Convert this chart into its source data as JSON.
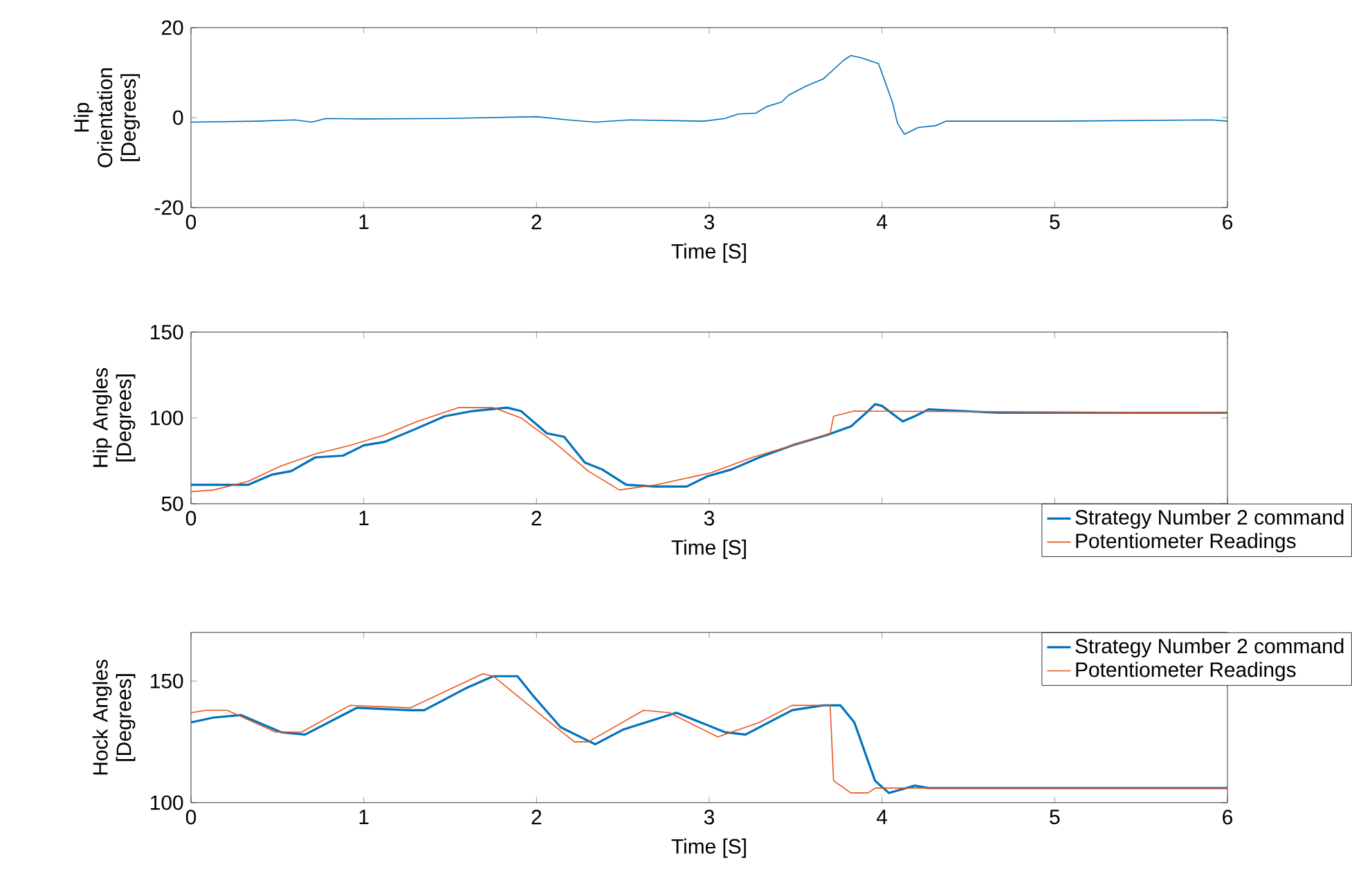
{
  "chart_data": [
    {
      "type": "line",
      "xlabel": "Time [S]",
      "ylabel": "Hip Orientation [Degrees]",
      "xlim": [
        0,
        6
      ],
      "ylim": [
        -20,
        20
      ],
      "xticks": [
        0,
        1,
        2,
        3,
        4,
        5,
        6
      ],
      "yticks": [
        -20,
        0,
        20
      ],
      "series": [
        {
          "color": "#0072bd",
          "x": [
            0,
            0.38,
            0.6,
            0.7,
            0.78,
            1.0,
            1.47,
            2.0,
            2.18,
            2.34,
            2.54,
            2.97,
            3.09,
            3.17,
            3.27,
            3.33,
            3.42,
            3.46,
            3.56,
            3.66,
            3.78,
            3.82,
            3.88,
            3.98,
            4.0,
            4.06,
            4.09,
            4.13,
            4.21,
            4.31,
            4.37,
            4.43,
            5.0,
            5.91,
            6.0
          ],
          "values": [
            -1,
            -0.8,
            -0.5,
            -1,
            -0.2,
            -0.3,
            -0.2,
            0.2,
            -0.5,
            -1,
            -0.5,
            -0.8,
            -0.2,
            0.8,
            1,
            2.4,
            3.5,
            5,
            7,
            8.6,
            12.8,
            13.8,
            13.3,
            12,
            9.9,
            3.5,
            -1.3,
            -3.7,
            -2.2,
            -1.8,
            -0.8,
            -0.8,
            -0.8,
            -0.5,
            -0.8
          ]
        }
      ]
    },
    {
      "type": "line",
      "xlabel": "Time [S]",
      "ylabel": "Hip Angles [Degrees]",
      "xlim": [
        0,
        6
      ],
      "ylim": [
        50,
        150
      ],
      "xticks": [
        0,
        1,
        2,
        3,
        {
          "value": 4,
          "label": null
        },
        {
          "value": 5,
          "label": null
        },
        {
          "value": 6,
          "label": null
        }
      ],
      "yticks": [
        50,
        100,
        150
      ],
      "legend": "bottom right",
      "series": [
        {
          "name": "Strategy Number 2 command",
          "color": "#0072bd",
          "x": [
            0,
            0.33,
            0.47,
            0.58,
            0.72,
            0.88,
            1.0,
            1.12,
            1.31,
            1.47,
            1.63,
            1.83,
            1.91,
            1.98,
            2.06,
            2.16,
            2.28,
            2.38,
            2.52,
            2.69,
            2.87,
            2.99,
            3.13,
            3.29,
            3.48,
            3.68,
            3.82,
            3.92,
            3.96,
            4.0,
            4.12,
            4.19,
            4.27,
            4.67,
            6.0
          ],
          "values": [
            61,
            61,
            67,
            69,
            77,
            78,
            84,
            86,
            94,
            101,
            104,
            106,
            104,
            98,
            91,
            89,
            74,
            70,
            61,
            60,
            60,
            66,
            70,
            77,
            84,
            90,
            95,
            104,
            108,
            107,
            98,
            101,
            105,
            103,
            103
          ]
        },
        {
          "name": "Potentiometer Readings",
          "color": "#e8541c",
          "x": [
            0,
            0.13,
            0.33,
            0.52,
            0.72,
            0.92,
            1.12,
            1.31,
            1.55,
            1.75,
            1.91,
            2.1,
            2.3,
            2.48,
            2.69,
            3.01,
            3.25,
            3.48,
            3.7,
            3.72,
            3.84,
            6.0
          ],
          "values": [
            57,
            58,
            63,
            72,
            79,
            84,
            90,
            98,
            106,
            106,
            100,
            86,
            69,
            58,
            61,
            68,
            77,
            84,
            91,
            101,
            104,
            103
          ]
        }
      ]
    },
    {
      "type": "line",
      "xlabel": "Time [S]",
      "ylabel": "Hock Angles [Degrees]",
      "xlim": [
        0,
        6
      ],
      "ylim": [
        100,
        170
      ],
      "xticks": [
        0,
        1,
        2,
        3,
        4,
        5,
        6
      ],
      "yticks": [
        100,
        150
      ],
      "legend": "top right",
      "series": [
        {
          "name": "Strategy Number 2 command",
          "color": "#0072bd",
          "x": [
            0,
            0.13,
            0.29,
            0.52,
            0.66,
            0.96,
            1.27,
            1.35,
            1.59,
            1.75,
            1.89,
            1.98,
            2.14,
            2.34,
            2.5,
            2.81,
            3.09,
            3.21,
            3.48,
            3.66,
            3.76,
            3.84,
            3.96,
            4.04,
            4.19,
            4.27,
            6.0
          ],
          "values": [
            133,
            135,
            136,
            129,
            128,
            139,
            138,
            138,
            147,
            152,
            152,
            144,
            131,
            124,
            130,
            137,
            129,
            128,
            138,
            140,
            140,
            133,
            109,
            104,
            107,
            106,
            106
          ]
        },
        {
          "name": "Potentiometer Readings",
          "color": "#e8541c",
          "x": [
            0,
            0.09,
            0.21,
            0.49,
            0.64,
            0.92,
            1.27,
            1.51,
            1.69,
            1.75,
            2.06,
            2.22,
            2.3,
            2.62,
            2.77,
            3.05,
            3.29,
            3.48,
            3.7,
            3.72,
            3.82,
            3.92,
            3.96,
            6.0
          ],
          "values": [
            137,
            138,
            138,
            129,
            129,
            140,
            139,
            147,
            153,
            152,
            134,
            125,
            125,
            138,
            137,
            127,
            133,
            140,
            140,
            109,
            104,
            104,
            106,
            106
          ]
        }
      ]
    }
  ]
}
